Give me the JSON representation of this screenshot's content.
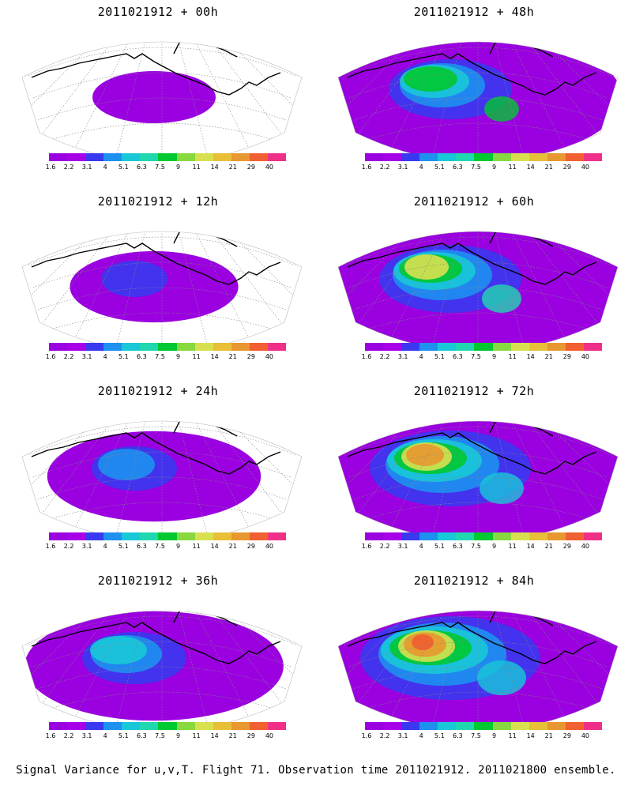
{
  "panels": [
    {
      "title": "2011021912 + 00h",
      "level": 0
    },
    {
      "title": "2011021912 + 48h",
      "level": 4
    },
    {
      "title": "2011021912 + 12h",
      "level": 1
    },
    {
      "title": "2011021912 + 60h",
      "level": 5
    },
    {
      "title": "2011021912 + 24h",
      "level": 2
    },
    {
      "title": "2011021912 + 72h",
      "level": 6
    },
    {
      "title": "2011021912 + 36h",
      "level": 3
    },
    {
      "title": "2011021912 + 84h",
      "level": 7
    }
  ],
  "colorbar": {
    "colors": [
      "#9a00e0",
      "#a700e8",
      "#3a38f0",
      "#1e90f0",
      "#18c8d8",
      "#20d8b0",
      "#00c830",
      "#88d840",
      "#d8e050",
      "#e8c038",
      "#e89830",
      "#f06030",
      "#f03088"
    ],
    "labels": [
      "1.6",
      "2.2",
      "3.1",
      "4",
      "5.1",
      "6.3",
      "7.5",
      "9",
      "11",
      "14",
      "21",
      "29",
      "40"
    ]
  },
  "caption": "Signal Variance for u,v,T. Flight 71. Observation time 2011021912. 2011021800 ensemble."
}
